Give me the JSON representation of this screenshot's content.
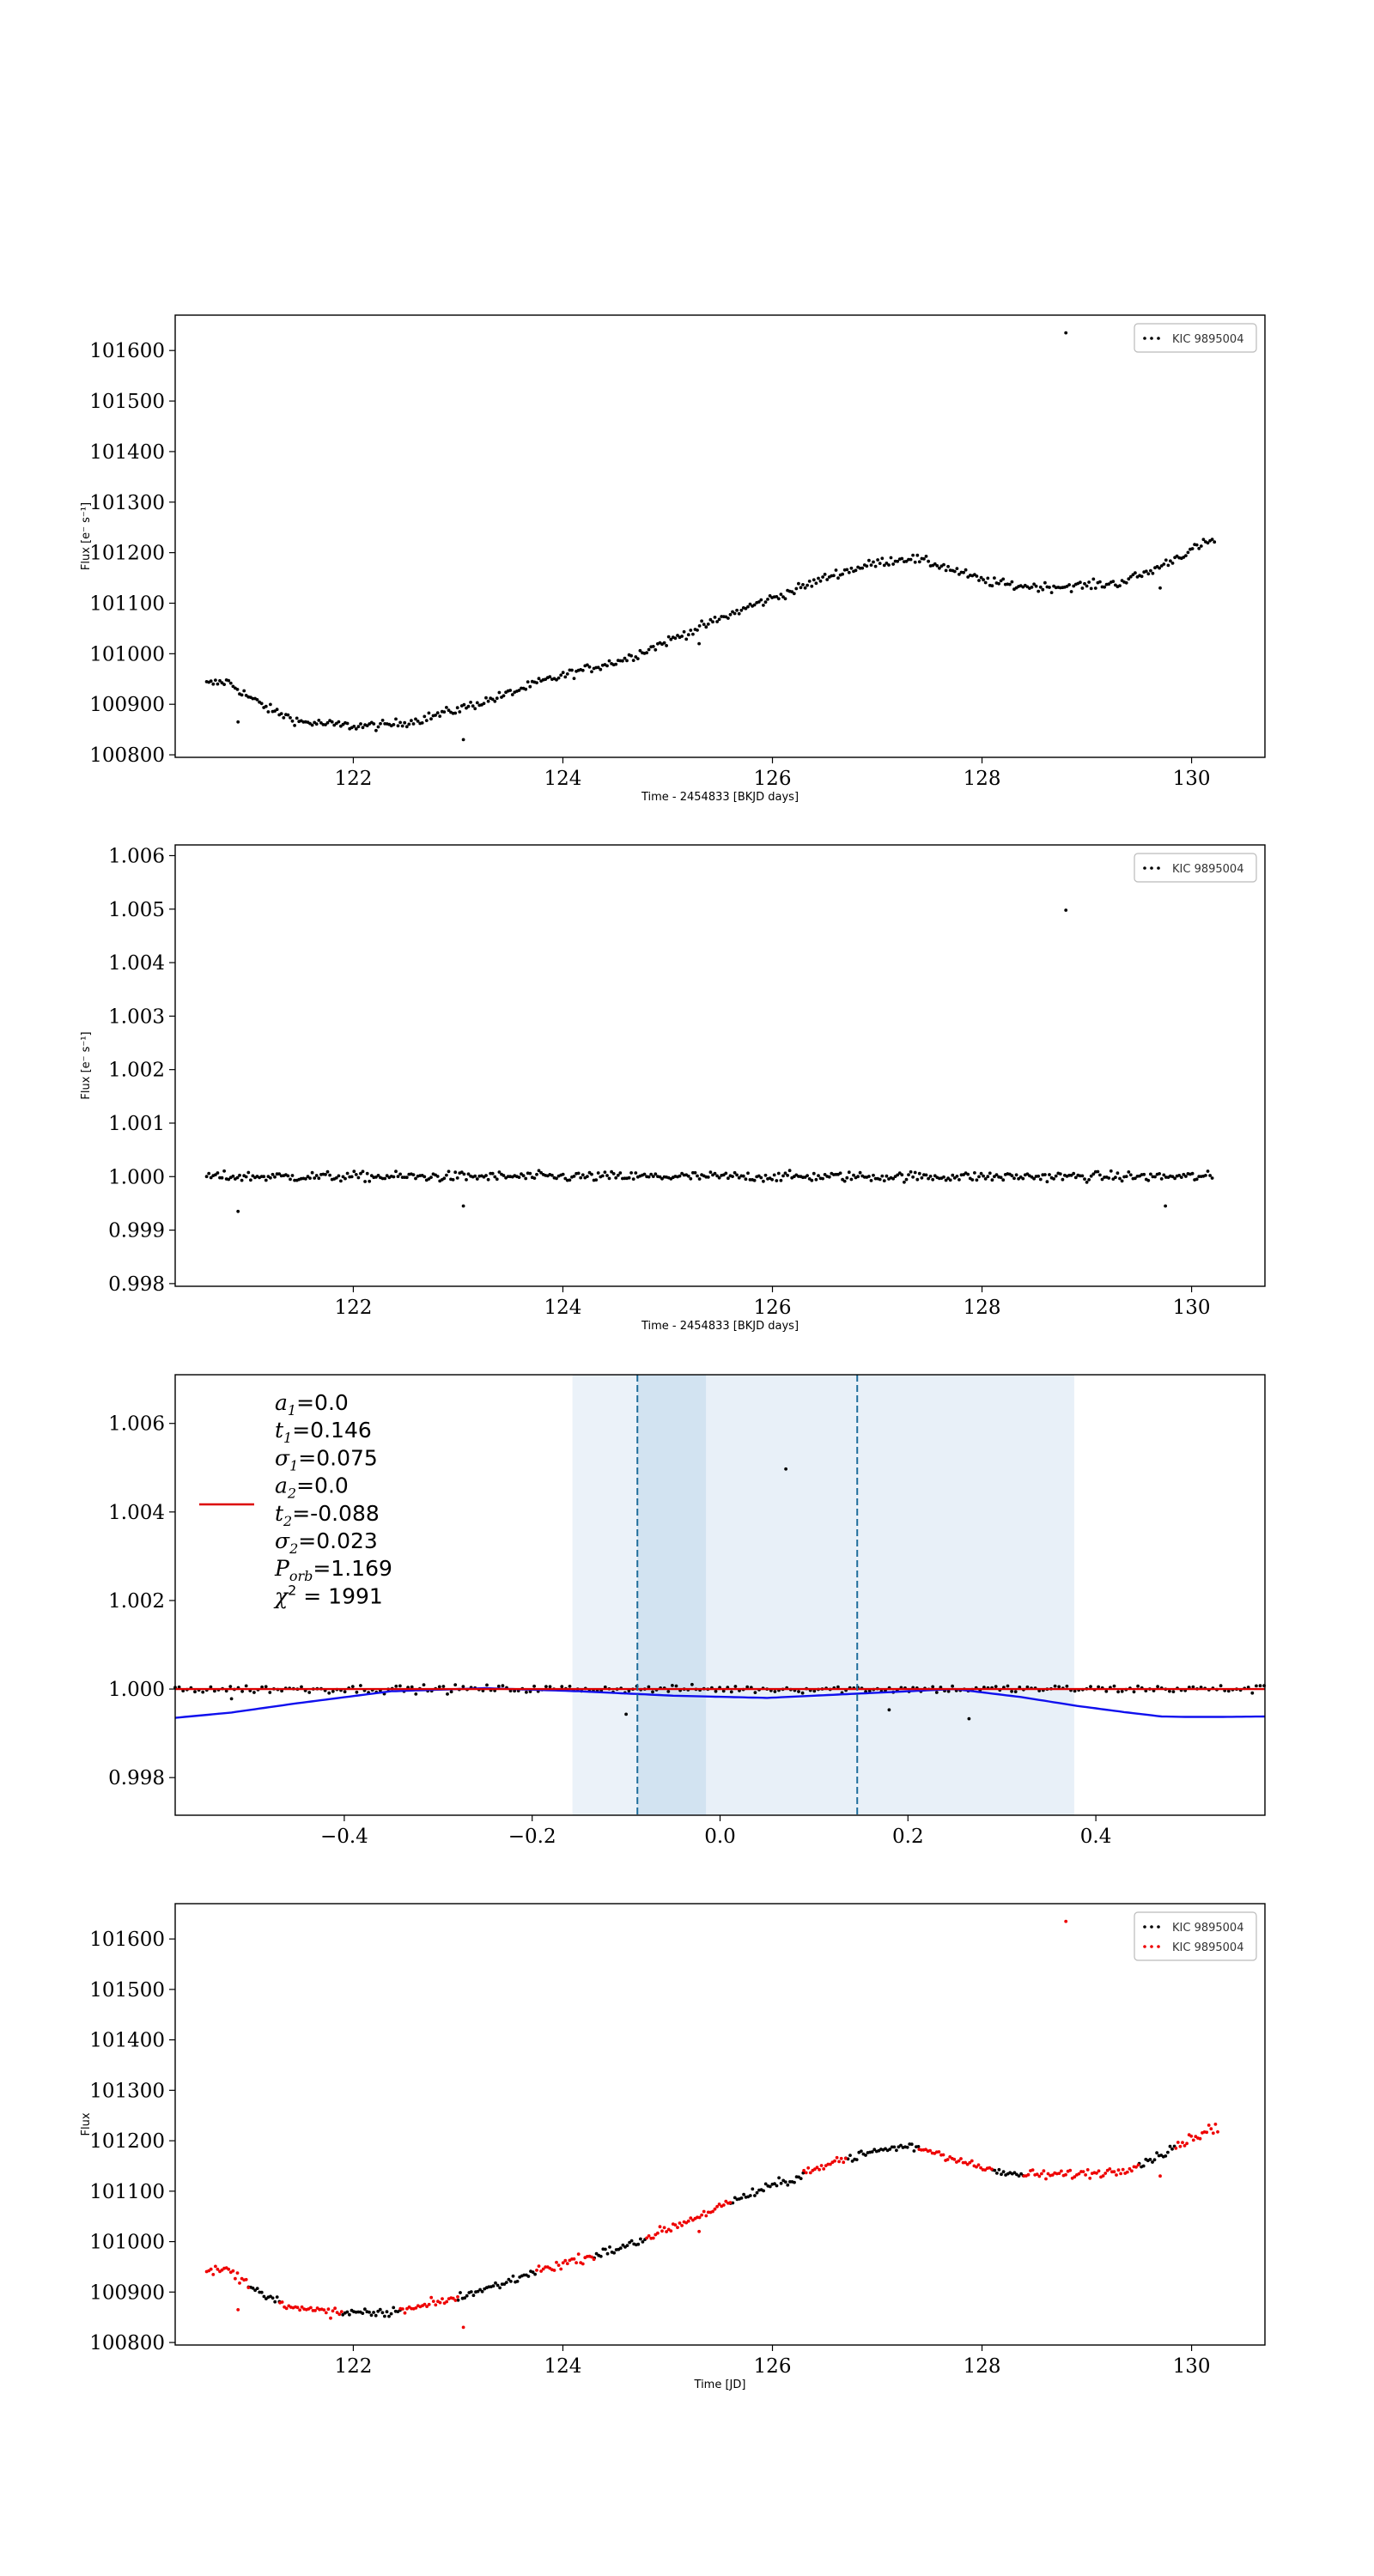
{
  "chart_data": [
    {
      "type": "scatter",
      "xlabel": "Time - 2454833 [BKJD days]",
      "ylabel": "Flux [e⁻ s⁻¹]",
      "xlim": [
        120.3,
        130.7
      ],
      "ylim": [
        100795,
        101670
      ],
      "xticks": [
        "122",
        "124",
        "126",
        "128",
        "130"
      ],
      "yticks": [
        "100800",
        "100900",
        "101000",
        "101100",
        "101200",
        "101300",
        "101400",
        "101500",
        "101600"
      ],
      "legend": {
        "placement": "top-right",
        "entries": [
          "KIC 9895004"
        ]
      },
      "series": [
        {
          "name": "KIC 9895004",
          "color": "#000000",
          "marker": "dot",
          "trend_x": [
            120.6,
            120.8,
            121.0,
            121.2,
            121.5,
            121.8,
            122.0,
            122.3,
            122.6,
            123.0,
            123.4,
            123.8,
            124.2,
            124.6,
            125.0,
            125.4,
            125.8,
            126.2,
            126.6,
            127.0,
            127.3,
            127.6,
            128.0,
            128.3,
            128.6,
            129.0,
            129.3,
            129.6,
            129.9,
            130.2
          ],
          "trend_y": [
            100940,
            100945,
            100915,
            100890,
            100865,
            100860,
            100857,
            100858,
            100868,
            100890,
            100915,
            100945,
            100968,
            100990,
            101025,
            101060,
            101095,
            101125,
            101158,
            101180,
            101190,
            101175,
            101145,
            101135,
            101132,
            101135,
            101140,
            101162,
            101195,
            101225
          ],
          "outliers": [
            [
              128.8,
              101635
            ],
            [
              120.9,
              100865
            ],
            [
              123.05,
              100830
            ],
            [
              125.3,
              101020
            ],
            [
              129.7,
              101130
            ]
          ]
        }
      ]
    },
    {
      "type": "scatter",
      "xlabel": "Time - 2454833 [BKJD days]",
      "ylabel": "Flux [e⁻ s⁻¹]",
      "xlim": [
        120.3,
        130.7
      ],
      "ylim": [
        0.99795,
        1.0062
      ],
      "xticks": [
        "122",
        "124",
        "126",
        "128",
        "130"
      ],
      "yticks": [
        "0.998",
        "0.999",
        "1.000",
        "1.001",
        "1.002",
        "1.003",
        "1.004",
        "1.005",
        "1.006"
      ],
      "legend": {
        "placement": "top-right",
        "entries": [
          "KIC 9895004"
        ]
      },
      "series": [
        {
          "name": "KIC 9895004",
          "color": "#000000",
          "marker": "dot",
          "baseline": 1.0,
          "x_range": [
            120.6,
            130.2
          ],
          "outliers": [
            [
              128.8,
              1.00498
            ],
            [
              120.9,
              0.99935
            ],
            [
              123.05,
              0.99945
            ],
            [
              129.75,
              0.99945
            ]
          ]
        }
      ]
    },
    {
      "type": "scatter",
      "xlim": [
        -0.58,
        0.58
      ],
      "ylim": [
        0.99715,
        1.0071
      ],
      "xticks": [
        "−0.4",
        "−0.2",
        "0.0",
        "0.2",
        "0.4"
      ],
      "yticks": [
        "0.998",
        "1.000",
        "1.002",
        "1.004",
        "1.006"
      ],
      "eclipse_regions": [
        {
          "range": [
            -0.157,
            0.377
          ],
          "color": "#e8f0f8"
        },
        {
          "range": [
            -0.157,
            -0.015
          ],
          "color": "#ebf2f9"
        },
        {
          "range": [
            -0.088,
            -0.015
          ],
          "color": "#d2e3f1"
        }
      ],
      "vlines": [
        -0.088,
        0.146
      ],
      "model_line": {
        "color": "#dd0000",
        "value": 1.0
      },
      "blue_line": {
        "color": "#1010ee",
        "x": [
          -0.58,
          -0.52,
          -0.45,
          -0.35,
          -0.25,
          -0.15,
          -0.05,
          0.05,
          0.15,
          0.25,
          0.32,
          0.38,
          0.43,
          0.47,
          0.5,
          0.53,
          0.58
        ],
        "y": [
          0.99935,
          0.99947,
          0.99968,
          0.99995,
          1.00002,
          0.99995,
          0.99985,
          0.9998,
          0.9999,
          1.0,
          0.99982,
          0.99962,
          0.99948,
          0.99938,
          0.99937,
          0.99937,
          0.99938
        ]
      },
      "data_points": {
        "color": "#000000",
        "baseline": 1.0,
        "x_range": [
          -0.58,
          0.58
        ],
        "outliers": [
          [
            0.07,
            1.00497
          ],
          [
            -0.1,
            0.99943
          ],
          [
            0.265,
            0.99933
          ],
          [
            -0.52,
            0.99978
          ],
          [
            0.18,
            0.99953
          ]
        ]
      },
      "legend": {
        "placement": "upper-left",
        "line_color": "#dd0000",
        "entries": [
          {
            "sym": "a",
            "sub": "1",
            "value": "=0.0"
          },
          {
            "sym": "t",
            "sub": "1",
            "value": "=0.146"
          },
          {
            "sym": "σ",
            "sub": "1",
            "value": "=0.075"
          },
          {
            "sym": "a",
            "sub": "2",
            "value": "=0.0"
          },
          {
            "sym": "t",
            "sub": "2",
            "value": "=-0.088"
          },
          {
            "sym": "σ",
            "sub": "2",
            "value": "=0.023"
          },
          {
            "sym": "P",
            "sub": "orb",
            "value": "=1.169"
          },
          {
            "sym": "χ",
            "sup": "2",
            "value": " = 1991"
          }
        ]
      }
    },
    {
      "type": "scatter",
      "xlabel": "Time [JD]",
      "ylabel": "Flux",
      "xlim": [
        120.3,
        130.7
      ],
      "ylim": [
        100795,
        101670
      ],
      "xticks": [
        "122",
        "124",
        "126",
        "128",
        "130"
      ],
      "yticks": [
        "100800",
        "100900",
        "101000",
        "101100",
        "101200",
        "101300",
        "101400",
        "101500",
        "101600"
      ],
      "legend": {
        "placement": "top-right",
        "entries": [
          "KIC 9895004",
          "KIC 9895004"
        ]
      },
      "series": [
        {
          "name": "KIC 9895004",
          "color": "#000000",
          "marker": "dot",
          "segments": [
            [
              121.0,
              121.3
            ],
            [
              121.9,
              122.45
            ],
            [
              123.0,
              123.75
            ],
            [
              124.3,
              124.8
            ],
            [
              125.6,
              126.3
            ],
            [
              126.7,
              127.4
            ],
            [
              128.1,
              128.4
            ],
            [
              129.5,
              129.85
            ]
          ]
        },
        {
          "name": "KIC 9895004",
          "color": "#ee0000",
          "marker": "dot",
          "segments": [
            [
              120.6,
              121.0
            ],
            [
              121.3,
              121.9
            ],
            [
              122.45,
              123.0
            ],
            [
              123.75,
              124.3
            ],
            [
              124.8,
              125.6
            ],
            [
              126.3,
              126.7
            ],
            [
              127.4,
              128.1
            ],
            [
              128.4,
              129.5
            ],
            [
              129.85,
              130.25
            ]
          ],
          "outliers": [
            [
              128.8,
              101635
            ],
            [
              120.9,
              100865
            ],
            [
              123.05,
              100830
            ],
            [
              125.3,
              101020
            ],
            [
              129.7,
              101130
            ]
          ]
        }
      ]
    }
  ]
}
